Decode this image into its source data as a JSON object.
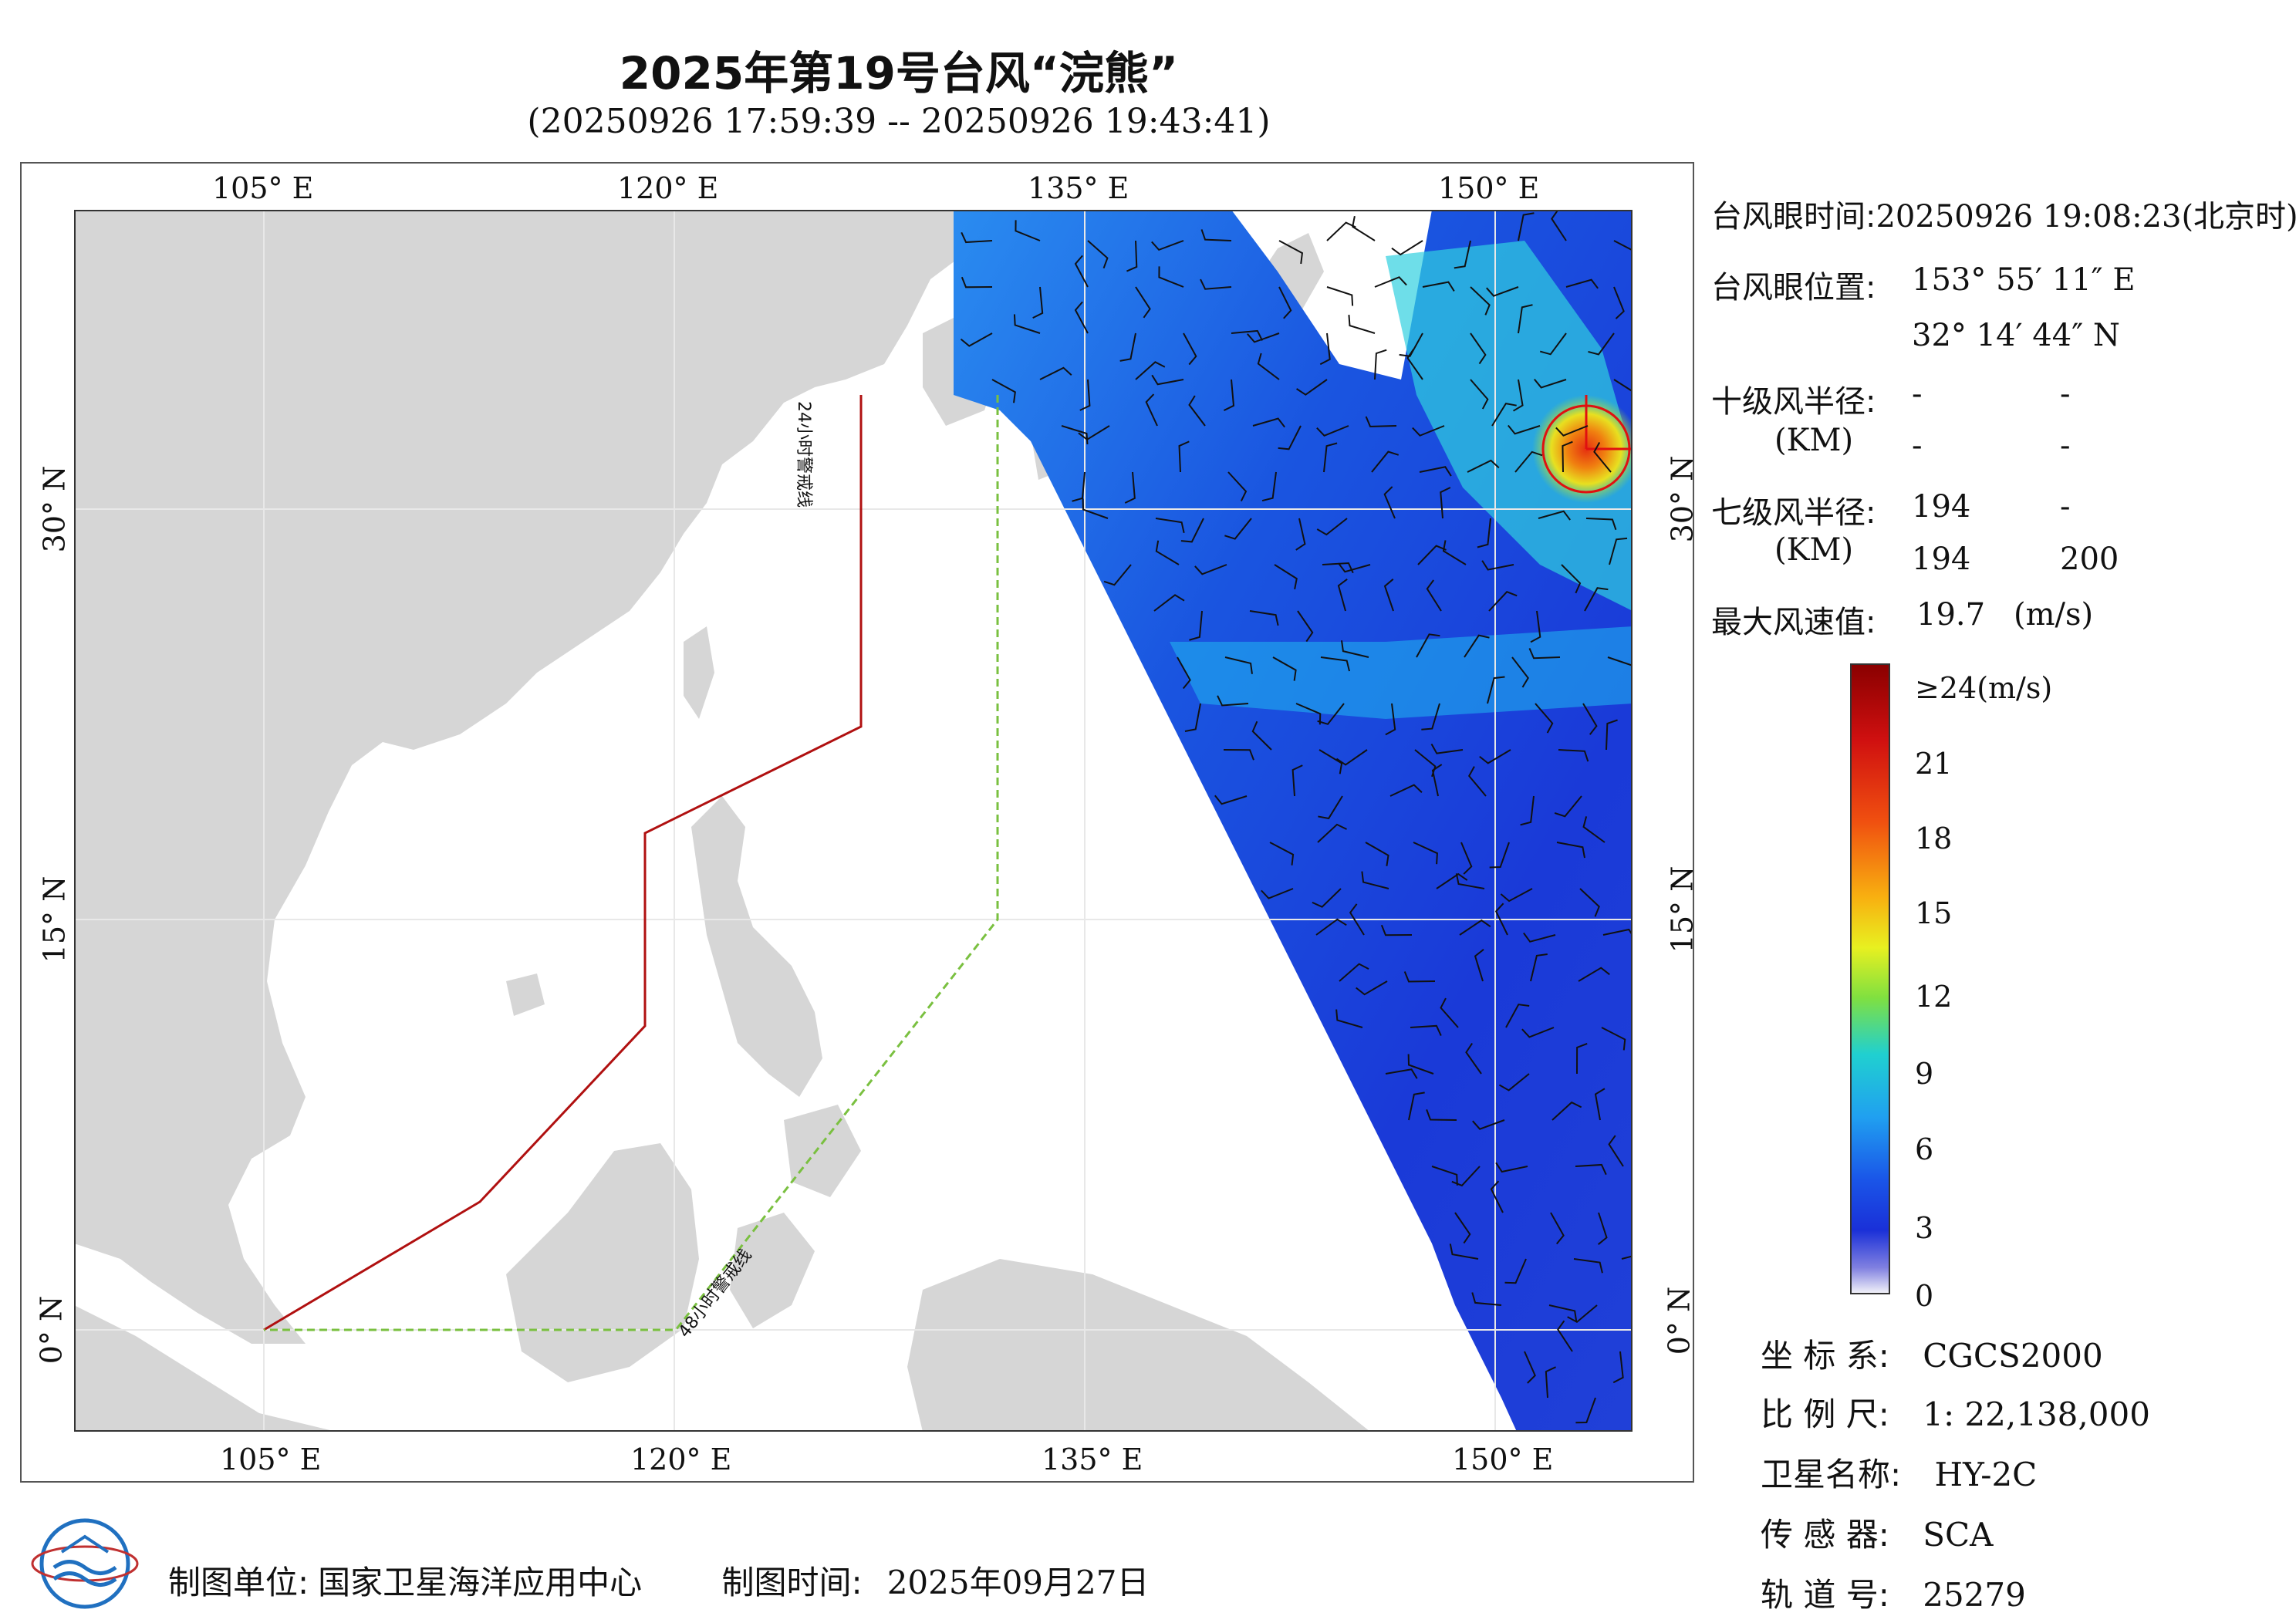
{
  "header": {
    "title": "2025年第19号台风“浣熊”",
    "subtitle": "(20250926 17:59:39 -- 20250926 19:43:41)"
  },
  "map": {
    "extent": {
      "lon_min": 100,
      "lon_max": 155,
      "lat_min": -4,
      "lat_max": 41
    },
    "top_lon_labels": [
      "105° E",
      "120° E",
      "135° E",
      "150° E"
    ],
    "bottom_lon_labels": [
      "105° E",
      "120° E",
      "135° E",
      "150° E"
    ],
    "left_lat_labels": [
      "30° N",
      "15° N",
      "0° N"
    ],
    "right_lat_labels": [
      "30° N",
      "15° N",
      "0° N"
    ],
    "warning_line_24h": "24小时警戒线",
    "warning_line_48h": "48小时警戒线",
    "colors": {
      "land": "#d6d6d6",
      "ocean": "#ffffff",
      "line_24h": "#b01010",
      "line_48h": "#7ac040",
      "typhoon_eye": "#e01010"
    }
  },
  "info": {
    "eye_time_label": "台风眼时间:",
    "eye_time_value": "20250926 19:08:23(北京时)",
    "eye_pos_label": "台风眼位置:",
    "eye_lon": "153° 55′ 11″ E",
    "eye_lat": "32° 14′ 44″ N",
    "r10_label": "十级风半径:",
    "r10_unit": "(KM)",
    "r10_values": [
      "-",
      "-",
      "-",
      "-"
    ],
    "r7_label": "七级风半径:",
    "r7_unit": "(KM)",
    "r7_values": [
      "194",
      "-",
      "194",
      "200"
    ],
    "max_wind_label": "最大风速值:",
    "max_wind_value": "19.7",
    "max_wind_unit": "(m/s)"
  },
  "legend": {
    "ticks": [
      "≥24(m/s)",
      "21",
      "18",
      "15",
      "12",
      "9",
      "6",
      "3",
      "0"
    ],
    "tick_values": [
      24,
      21,
      18,
      15,
      12,
      9,
      6,
      3,
      0
    ]
  },
  "meta": {
    "crs_label": "坐 标 系:",
    "crs_value": "CGCS2000",
    "scale_label": "比 例 尺:",
    "scale_value": "1: 22,138,000",
    "satellite_label": "卫星名称:",
    "satellite_value": "HY-2C",
    "sensor_label": "传 感 器:",
    "sensor_value": "SCA",
    "orbit_label": "轨 道 号:",
    "orbit_value": "25279"
  },
  "footer": {
    "producer_label": "制图单位:",
    "producer_value": "国家卫星海洋应用中心",
    "date_label": "制图时间:",
    "date_value": "2025年09月27日"
  },
  "logo": {
    "icon": "nsoas-logo-icon"
  }
}
